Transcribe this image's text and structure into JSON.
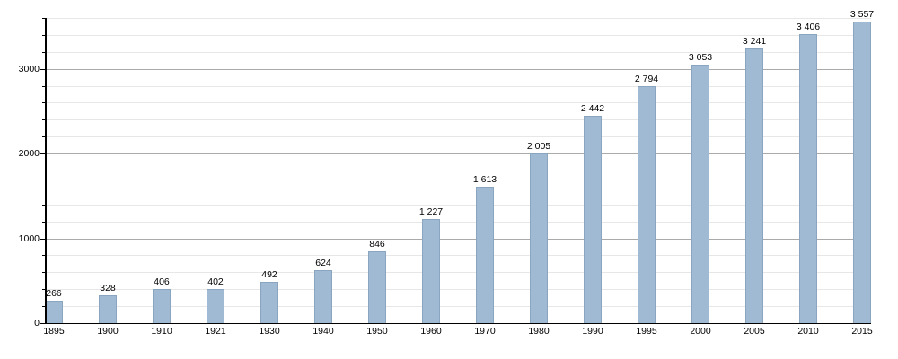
{
  "chart_data": {
    "type": "bar",
    "title": "",
    "xlabel": "",
    "ylabel": "",
    "categories": [
      "1895",
      "1900",
      "1910",
      "1921",
      "1930",
      "1940",
      "1950",
      "1960",
      "1970",
      "1980",
      "1990",
      "1995",
      "2000",
      "2005",
      "2010",
      "2015"
    ],
    "values": [
      266,
      328,
      406,
      402,
      492,
      624,
      846,
      1227,
      1613,
      2005,
      2442,
      2794,
      3053,
      3241,
      3406,
      3557
    ],
    "value_labels": [
      "266",
      "328",
      "406",
      "402",
      "492",
      "624",
      "846",
      "1 227",
      "1 613",
      "2 005",
      "2 442",
      "2 794",
      "3 053",
      "3 241",
      "3 406",
      "3 557"
    ],
    "ylim": [
      0,
      3600
    ],
    "y_major_ticks": [
      0,
      1000,
      2000,
      3000
    ],
    "y_major_tick_labels": [
      "0",
      "1000",
      "2000",
      "3000"
    ],
    "y_minor_step": 200,
    "grid": true,
    "legend": "none",
    "colors": {
      "bar_fill": "#a1bad3",
      "bar_border": "#8aa5c0",
      "grid_major": "#aaaaaa",
      "grid_minor": "#e7e7e7",
      "axis": "#000000",
      "text": "#000000",
      "background": "#ffffff"
    }
  }
}
